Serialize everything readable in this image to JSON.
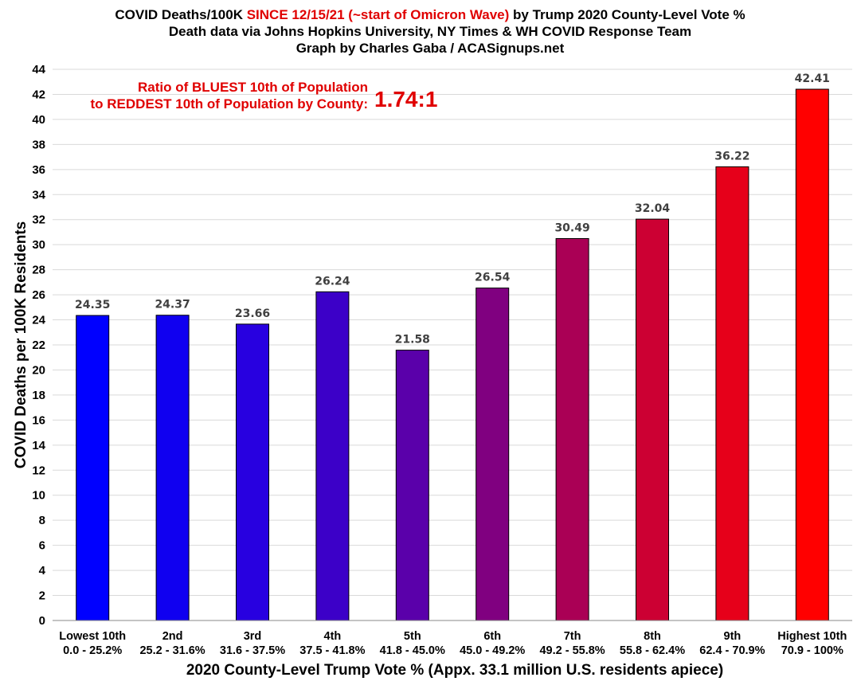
{
  "chart_data": {
    "type": "bar",
    "title": {
      "prefix": "COVID Deaths/100K ",
      "highlight": "SINCE 12/15/21 (~start of Omicron Wave)",
      "suffix": " by Trump 2020 County-Level Vote %",
      "line2": "Death data via Johns Hopkins University, NY Times & WH COVID Response Team",
      "line3": "Graph by Charles Gaba / ACASignups.net"
    },
    "ylabel": "COVID Deaths per 100K Residents",
    "xlabel": "2020 County-Level Trump Vote % (Appx. 33.1 million U.S. residents apiece)",
    "ylim": [
      0,
      44
    ],
    "ytick_step": 2,
    "grid": true,
    "categories": [
      "Lowest 10th",
      "2nd",
      "3rd",
      "4th",
      "5th",
      "6th",
      "7th",
      "8th",
      "9th",
      "Highest 10th"
    ],
    "category_ranges": [
      "0.0 - 25.2%",
      "25.2 - 31.6%",
      "31.6 - 37.5%",
      "37.5 - 41.8%",
      "41.8 - 45.0%",
      "45.0 - 49.2%",
      "49.2 - 55.8%",
      "55.8 - 62.4%",
      "62.4 - 70.9%",
      "70.9 - 100%"
    ],
    "values": [
      24.35,
      24.37,
      23.66,
      26.24,
      21.58,
      26.54,
      30.49,
      32.04,
      36.22,
      42.41
    ],
    "value_labels": [
      "24.35",
      "24.37",
      "23.66",
      "26.24",
      "21.58",
      "26.54",
      "30.49",
      "32.04",
      "36.22",
      "42.41"
    ],
    "bar_colors": [
      "#0000ff",
      "#1000f0",
      "#2800e0",
      "#3c00c8",
      "#5a00aa",
      "#800080",
      "#aa0055",
      "#cc0033",
      "#e6001a",
      "#ff0000"
    ],
    "annotation": {
      "line1": "Ratio of BLUEST 10th of Population",
      "line2": "to REDDEST 10th of Population by County:",
      "ratio": "1.74:1",
      "color": "#e00000"
    }
  }
}
